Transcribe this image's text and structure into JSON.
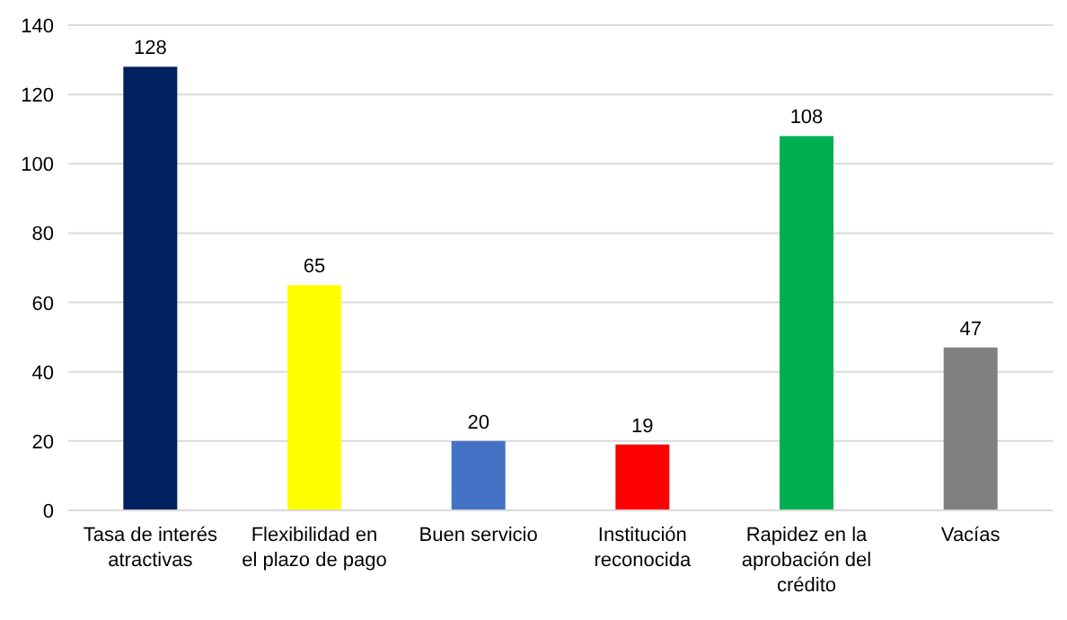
{
  "chart_data": {
    "type": "bar",
    "categories": [
      "Tasa de interés atractivas",
      "Flexibilidad en el plazo de pago",
      "Buen servicio",
      "Institución reconocida",
      "Rapidez en la aprobación del crédito",
      "Vacías"
    ],
    "values": [
      128,
      65,
      20,
      19,
      108,
      47
    ],
    "colors": [
      "#002060",
      "#ffff00",
      "#4472c4",
      "#ff0000",
      "#00b050",
      "#808080"
    ],
    "ylim": [
      0,
      140
    ],
    "yticks": [
      0,
      20,
      40,
      60,
      80,
      100,
      120,
      140
    ],
    "grid": "y",
    "data_labels": true
  }
}
